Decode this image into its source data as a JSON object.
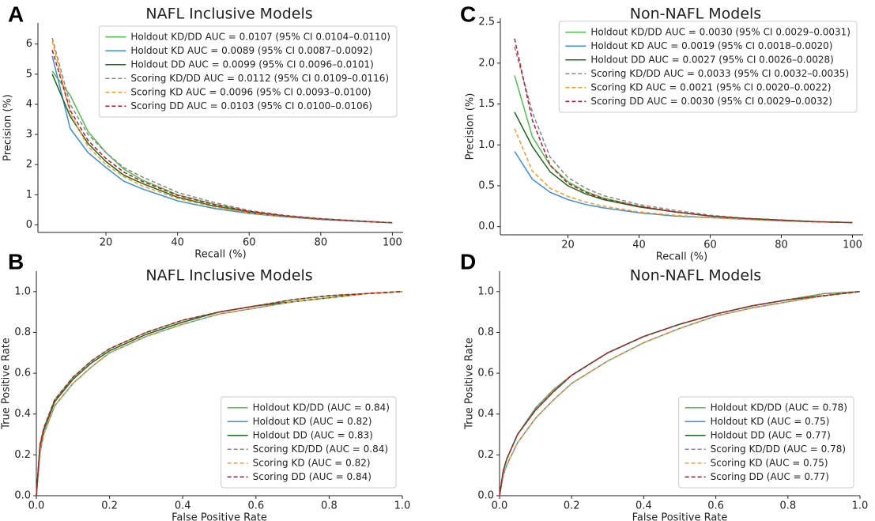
{
  "chart_data": [
    {
      "type": "line",
      "panel_label": "A",
      "title": "NAFL Inclusive Models",
      "xlabel": "Recall (%)",
      "ylabel": "Precision (%)",
      "x": [
        5,
        10,
        15,
        20,
        25,
        30,
        40,
        50,
        60,
        70,
        80,
        90,
        100
      ],
      "xlim": [
        1,
        103
      ],
      "ylim": [
        -0.25,
        6.7
      ],
      "xticks": [
        20,
        40,
        60,
        80,
        100
      ],
      "yticks": [
        0,
        1,
        2,
        3,
        4,
        5,
        6
      ],
      "legend": "upper right",
      "series": [
        {
          "name": "Holdout KD/DD AUC = 0.0107 (95% CI 0.0104–0.0110)",
          "color": "#4cc24a",
          "linestyle": "solid",
          "values": [
            5.1,
            4.3,
            3.1,
            2.4,
            1.85,
            1.5,
            1.0,
            0.7,
            0.45,
            0.3,
            0.2,
            0.13,
            0.07
          ]
        },
        {
          "name": "Holdout KD AUC = 0.0089 (95% CI 0.0087–0.0092)",
          "color": "#3a8fe0",
          "linestyle": "solid",
          "values": [
            5.6,
            3.2,
            2.4,
            1.9,
            1.45,
            1.2,
            0.8,
            0.55,
            0.38,
            0.27,
            0.18,
            0.12,
            0.07
          ]
        },
        {
          "name": "Holdout DD AUC = 0.0099 (95% CI 0.0096–0.0101)",
          "color": "#1b6b1b",
          "linestyle": "solid",
          "values": [
            5.0,
            3.6,
            2.7,
            2.1,
            1.65,
            1.38,
            0.92,
            0.63,
            0.42,
            0.29,
            0.19,
            0.13,
            0.07
          ]
        },
        {
          "name": "Scoring KD/DD AUC = 0.0112 (95% CI 0.0109–0.0116)",
          "color": "#888888",
          "linestyle": "dashed",
          "values": [
            6.2,
            4.0,
            3.0,
            2.4,
            1.9,
            1.6,
            1.08,
            0.75,
            0.48,
            0.32,
            0.21,
            0.14,
            0.07
          ]
        },
        {
          "name": "Scoring KD AUC = 0.0096 (95% CI 0.0093–0.0100)",
          "color": "#ff9a1a",
          "linestyle": "dashed",
          "values": [
            6.1,
            3.7,
            2.6,
            2.0,
            1.6,
            1.3,
            0.88,
            0.6,
            0.4,
            0.28,
            0.19,
            0.13,
            0.07
          ]
        },
        {
          "name": "Scoring DD AUC = 0.0103 (95% CI 0.0100–0.0106)",
          "color": "#c8102e",
          "linestyle": "dashed",
          "values": [
            5.8,
            3.8,
            2.8,
            2.2,
            1.75,
            1.45,
            0.98,
            0.68,
            0.45,
            0.3,
            0.2,
            0.13,
            0.07
          ]
        }
      ]
    },
    {
      "type": "line",
      "panel_label": "C",
      "title": "Non-NAFL Models",
      "xlabel": "Recall (%)",
      "ylabel": "Precision (%)",
      "x": [
        5,
        10,
        15,
        20,
        25,
        30,
        40,
        50,
        60,
        70,
        80,
        90,
        100
      ],
      "xlim": [
        1,
        103
      ],
      "ylim": [
        -0.1,
        2.55
      ],
      "xticks": [
        20,
        40,
        60,
        80,
        100
      ],
      "yticks": [
        {
          "value": 0,
          "label": "0.0"
        },
        0.5,
        {
          "value": 1,
          "label": "1.0"
        },
        1.5,
        {
          "value": 2,
          "label": "2.0"
        },
        2.5
      ],
      "legend": "upper right",
      "series": [
        {
          "name": "Holdout KD/DD AUC = 0.0030 (95% CI 0.0029–0.0031)",
          "color": "#4cc24a",
          "linestyle": "solid",
          "values": [
            1.85,
            1.1,
            0.75,
            0.55,
            0.43,
            0.35,
            0.25,
            0.18,
            0.13,
            0.1,
            0.08,
            0.06,
            0.05
          ]
        },
        {
          "name": "Holdout KD AUC = 0.0019 (95% CI 0.0018–0.0020)",
          "color": "#3a8fe0",
          "linestyle": "solid",
          "values": [
            0.92,
            0.58,
            0.42,
            0.33,
            0.27,
            0.23,
            0.17,
            0.13,
            0.11,
            0.09,
            0.07,
            0.06,
            0.05
          ]
        },
        {
          "name": "Holdout DD AUC = 0.0027 (95% CI 0.0026–0.0028)",
          "color": "#1b6b1b",
          "linestyle": "solid",
          "values": [
            1.4,
            0.98,
            0.67,
            0.5,
            0.4,
            0.33,
            0.24,
            0.18,
            0.13,
            0.1,
            0.08,
            0.06,
            0.05
          ]
        },
        {
          "name": "Scoring KD/DD AUC = 0.0033 (95% CI 0.0032–0.0035)",
          "color": "#888888",
          "linestyle": "dashed",
          "values": [
            2.2,
            1.4,
            0.85,
            0.6,
            0.47,
            0.38,
            0.27,
            0.2,
            0.14,
            0.1,
            0.08,
            0.06,
            0.05
          ]
        },
        {
          "name": "Scoring KD AUC = 0.0021 (95% CI 0.0020–0.0022)",
          "color": "#ff9a1a",
          "linestyle": "dashed",
          "values": [
            1.2,
            0.68,
            0.47,
            0.37,
            0.3,
            0.25,
            0.18,
            0.14,
            0.11,
            0.09,
            0.07,
            0.06,
            0.05
          ]
        },
        {
          "name": "Scoring DD AUC = 0.0030 (95% CI 0.0029–0.0032)",
          "color": "#c8102e",
          "linestyle": "dashed",
          "values": [
            2.3,
            1.3,
            0.75,
            0.53,
            0.42,
            0.34,
            0.25,
            0.18,
            0.13,
            0.1,
            0.08,
            0.06,
            0.05
          ]
        }
      ]
    },
    {
      "type": "line",
      "panel_label": "B",
      "title": "NAFL Inclusive Models",
      "xlabel": "False Positive Rate",
      "ylabel": "True Positive Rate",
      "x": [
        0,
        0.01,
        0.02,
        0.05,
        0.1,
        0.15,
        0.2,
        0.3,
        0.4,
        0.5,
        0.6,
        0.7,
        0.8,
        0.9,
        1
      ],
      "xlim": [
        0,
        1
      ],
      "ylim": [
        0,
        1.1
      ],
      "xticks": [
        {
          "value": 0,
          "label": "0.0"
        },
        0.2,
        0.4,
        0.6,
        0.8,
        {
          "value": 1,
          "label": "1.0"
        }
      ],
      "yticks": [
        {
          "value": 0,
          "label": "0.0"
        },
        0.2,
        0.4,
        0.6,
        0.8,
        {
          "value": 1,
          "label": "1.0"
        }
      ],
      "legend": "lower right",
      "series": [
        {
          "name": "Holdout KD/DD (AUC = 0.84)",
          "color": "#4cc24a",
          "linestyle": "solid",
          "values": [
            0,
            0.25,
            0.33,
            0.47,
            0.58,
            0.66,
            0.72,
            0.8,
            0.86,
            0.9,
            0.93,
            0.96,
            0.98,
            0.99,
            1
          ]
        },
        {
          "name": "Holdout KD (AUC = 0.82)",
          "color": "#3a8fe0",
          "linestyle": "solid",
          "values": [
            0,
            0.21,
            0.3,
            0.44,
            0.55,
            0.63,
            0.7,
            0.78,
            0.84,
            0.89,
            0.92,
            0.95,
            0.97,
            0.99,
            1
          ]
        },
        {
          "name": "Holdout DD (AUC = 0.83)",
          "color": "#1b6b1b",
          "linestyle": "solid",
          "values": [
            0,
            0.24,
            0.32,
            0.46,
            0.57,
            0.65,
            0.71,
            0.79,
            0.85,
            0.9,
            0.93,
            0.95,
            0.97,
            0.99,
            1
          ]
        },
        {
          "name": "Scoring KD/DD (AUC = 0.84)",
          "color": "#888888",
          "linestyle": "dashed",
          "values": [
            0,
            0.25,
            0.33,
            0.47,
            0.58,
            0.66,
            0.72,
            0.8,
            0.86,
            0.9,
            0.93,
            0.96,
            0.98,
            0.99,
            1
          ]
        },
        {
          "name": "Scoring KD (AUC = 0.82)",
          "color": "#ff9a1a",
          "linestyle": "dashed",
          "values": [
            0,
            0.21,
            0.3,
            0.44,
            0.55,
            0.63,
            0.7,
            0.78,
            0.84,
            0.89,
            0.92,
            0.95,
            0.97,
            0.99,
            1
          ]
        },
        {
          "name": "Scoring DD (AUC = 0.84)",
          "color": "#c8102e",
          "linestyle": "dashed",
          "values": [
            0,
            0.25,
            0.33,
            0.47,
            0.58,
            0.66,
            0.72,
            0.8,
            0.86,
            0.9,
            0.93,
            0.96,
            0.98,
            0.99,
            1
          ]
        }
      ]
    },
    {
      "type": "line",
      "panel_label": "D",
      "title": "Non-NAFL Models",
      "xlabel": "False Positive Rate",
      "ylabel": "True Positive Rate",
      "x": [
        0,
        0.01,
        0.02,
        0.05,
        0.1,
        0.15,
        0.2,
        0.3,
        0.4,
        0.5,
        0.6,
        0.7,
        0.8,
        0.9,
        1
      ],
      "xlim": [
        0,
        1
      ],
      "ylim": [
        0,
        1.1
      ],
      "xticks": [
        {
          "value": 0,
          "label": "0.0"
        },
        0.2,
        0.4,
        0.6,
        0.8,
        {
          "value": 1,
          "label": "1.0"
        }
      ],
      "yticks": [
        {
          "value": 0,
          "label": "0.0"
        },
        0.2,
        0.4,
        0.6,
        0.8,
        {
          "value": 1,
          "label": "1.0"
        }
      ],
      "legend": "lower right",
      "series": [
        {
          "name": "Holdout KD/DD (AUC = 0.78)",
          "color": "#4cc24a",
          "linestyle": "solid",
          "values": [
            0,
            0.12,
            0.18,
            0.3,
            0.43,
            0.52,
            0.59,
            0.7,
            0.78,
            0.84,
            0.89,
            0.93,
            0.96,
            0.99,
            1
          ]
        },
        {
          "name": "Holdout KD (AUC = 0.75)",
          "color": "#3a8fe0",
          "linestyle": "solid",
          "values": [
            0,
            0.1,
            0.15,
            0.26,
            0.38,
            0.47,
            0.55,
            0.66,
            0.75,
            0.82,
            0.88,
            0.92,
            0.95,
            0.98,
            1
          ]
        },
        {
          "name": "Holdout DD (AUC = 0.77)",
          "color": "#1b6b1b",
          "linestyle": "solid",
          "values": [
            0,
            0.12,
            0.18,
            0.3,
            0.42,
            0.51,
            0.59,
            0.7,
            0.78,
            0.84,
            0.89,
            0.93,
            0.96,
            0.98,
            1
          ]
        },
        {
          "name": "Scoring KD/DD (AUC = 0.78)",
          "color": "#888888",
          "linestyle": "dashed",
          "values": [
            0,
            0.12,
            0.18,
            0.3,
            0.43,
            0.52,
            0.59,
            0.7,
            0.78,
            0.84,
            0.89,
            0.93,
            0.96,
            0.99,
            1
          ]
        },
        {
          "name": "Scoring KD (AUC = 0.75)",
          "color": "#ff9a1a",
          "linestyle": "dashed",
          "values": [
            0,
            0.1,
            0.15,
            0.26,
            0.38,
            0.47,
            0.55,
            0.66,
            0.75,
            0.82,
            0.88,
            0.92,
            0.95,
            0.98,
            1
          ]
        },
        {
          "name": "Scoring DD (AUC = 0.77)",
          "color": "#c8102e",
          "linestyle": "dashed",
          "values": [
            0,
            0.12,
            0.18,
            0.3,
            0.42,
            0.51,
            0.59,
            0.7,
            0.78,
            0.84,
            0.89,
            0.93,
            0.96,
            0.98,
            1
          ]
        }
      ]
    }
  ]
}
